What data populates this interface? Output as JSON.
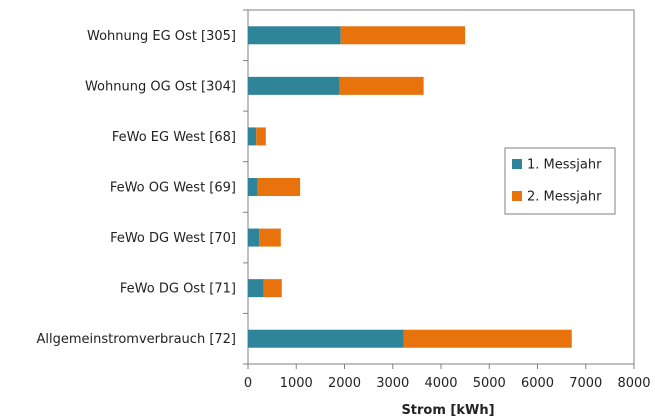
{
  "chart_data": {
    "type": "bar",
    "orientation": "horizontal",
    "stacked": true,
    "categories": [
      "Wohnung EG Ost [305]",
      "Wohnung OG Ost [304]",
      "FeWo EG West [68]",
      "FeWo OG West [69]",
      "FeWo DG West [70]",
      "FeWo DG Ost [71]",
      "Allgemeinstromverbrauch [72]"
    ],
    "series": [
      {
        "name": "1. Messjahr",
        "color": "#2E8499",
        "values": [
          1920,
          1900,
          170,
          200,
          230,
          320,
          3230
        ]
      },
      {
        "name": "2. Messjahr",
        "color": "#E8730C",
        "values": [
          2580,
          1740,
          200,
          880,
          450,
          380,
          3480
        ]
      }
    ],
    "title": "",
    "xlabel": "Strom [kWh]",
    "ylabel": "",
    "xlim": [
      0,
      8000
    ],
    "xticks": [
      0,
      1000,
      2000,
      3000,
      4000,
      5000,
      6000,
      7000,
      8000
    ],
    "grid": false,
    "legend_position": "right"
  }
}
